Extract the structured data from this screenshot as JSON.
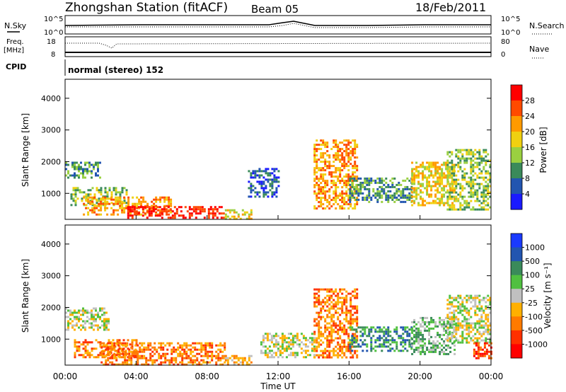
{
  "header": {
    "station": "Zhongshan Station (fitACF)",
    "beam": "Beam 05",
    "date": "18/Feb/2011"
  },
  "top_panels": {
    "nsky_label": "N.Sky",
    "nsearch_label": "N.Search",
    "nsky_ticks": [
      "10^5",
      "10^0"
    ],
    "nsearch_ticks": [
      "10^5",
      "10^0"
    ],
    "freq_label_line1": "Freq.",
    "freq_label_line2": "[MHz]",
    "freq_ticks": [
      "18",
      "8"
    ],
    "nave_label": "Nave",
    "nave_ticks": [
      "80",
      "0"
    ],
    "cpid_label": "CPID",
    "cpid_text": "normal (stereo) 152"
  },
  "x_axis": {
    "ticks": [
      "00:00",
      "04:00",
      "08:00",
      "12:00",
      "16:00",
      "20:00",
      "00:00"
    ],
    "label": "Time UT"
  },
  "chart_data": [
    {
      "type": "heatmap",
      "title": "",
      "xlabel": "Time UT",
      "ylabel": "Slant Range [km]",
      "x_range_hours": [
        0,
        24
      ],
      "ylim": [
        180,
        4600
      ],
      "y_ticks": [
        1000,
        2000,
        3000,
        4000
      ],
      "colorbar": {
        "label": "Power [dB]",
        "ticks": [
          "4",
          "8",
          "12",
          "16",
          "20",
          "24",
          "28"
        ],
        "colors": [
          "#1a1aff",
          "#2255b0",
          "#3a8a5a",
          "#9ad040",
          "#f0d010",
          "#ff9a00",
          "#ff4a00",
          "#ff0000"
        ]
      },
      "echo_regions": [
        {
          "t0": 0.0,
          "t1": 2.0,
          "r0": 1500,
          "r1": 2000,
          "level": 2
        },
        {
          "t0": 0.3,
          "t1": 3.5,
          "r0": 600,
          "r1": 1200,
          "level": 3
        },
        {
          "t0": 1.0,
          "t1": 6.0,
          "r0": 300,
          "r1": 900,
          "level": 5
        },
        {
          "t0": 3.5,
          "t1": 9.0,
          "r0": 200,
          "r1": 600,
          "level": 7
        },
        {
          "t0": 9.0,
          "t1": 10.5,
          "r0": 200,
          "r1": 500,
          "level": 4
        },
        {
          "t0": 10.3,
          "t1": 12.0,
          "r0": 900,
          "r1": 1800,
          "level": 1
        },
        {
          "t0": 14.0,
          "t1": 16.5,
          "r0": 500,
          "r1": 2700,
          "level": 5
        },
        {
          "t0": 16.0,
          "t1": 19.5,
          "r0": 700,
          "r1": 1500,
          "level": 2
        },
        {
          "t0": 19.5,
          "t1": 22.0,
          "r0": 600,
          "r1": 2000,
          "level": 4
        },
        {
          "t0": 21.5,
          "t1": 24.0,
          "r0": 500,
          "r1": 2400,
          "level": 3
        }
      ]
    },
    {
      "type": "heatmap",
      "title": "",
      "xlabel": "Time UT",
      "ylabel": "Slant Range [km]",
      "x_range_hours": [
        0,
        24
      ],
      "ylim": [
        180,
        4600
      ],
      "y_ticks": [
        1000,
        2000,
        3000,
        4000
      ],
      "colorbar": {
        "label": "Velocity [m s⁻¹]",
        "ticks": [
          "1000",
          "500",
          "100",
          "25",
          "-25",
          "-100",
          "-500",
          "-1000"
        ],
        "colors": [
          "#1a3aff",
          "#2255b0",
          "#3a8a5a",
          "#50c040",
          "#c0c0c0",
          "#ffb000",
          "#ff7a00",
          "#ff3000",
          "#ff0000"
        ]
      },
      "echo_regions": [
        {
          "t0": 0.0,
          "t1": 2.5,
          "r0": 1300,
          "r1": 2000,
          "level": 4
        },
        {
          "t0": 0.5,
          "t1": 4.0,
          "r0": 400,
          "r1": 1000,
          "level": 6
        },
        {
          "t0": 2.0,
          "t1": 9.0,
          "r0": 200,
          "r1": 900,
          "level": 6
        },
        {
          "t0": 9.0,
          "t1": 10.5,
          "r0": 200,
          "r1": 500,
          "level": 5
        },
        {
          "t0": 11.0,
          "t1": 14.0,
          "r0": 400,
          "r1": 1200,
          "level": 4
        },
        {
          "t0": 14.0,
          "t1": 16.5,
          "r0": 400,
          "r1": 2600,
          "level": 6
        },
        {
          "t0": 16.0,
          "t1": 19.5,
          "r0": 600,
          "r1": 1400,
          "level": 2
        },
        {
          "t0": 19.5,
          "t1": 22.0,
          "r0": 500,
          "r1": 1700,
          "level": 3
        },
        {
          "t0": 21.5,
          "t1": 24.0,
          "r0": 900,
          "r1": 2400,
          "level": 4
        },
        {
          "t0": 23.0,
          "t1": 24.0,
          "r0": 400,
          "r1": 900,
          "level": 7
        }
      ]
    }
  ]
}
